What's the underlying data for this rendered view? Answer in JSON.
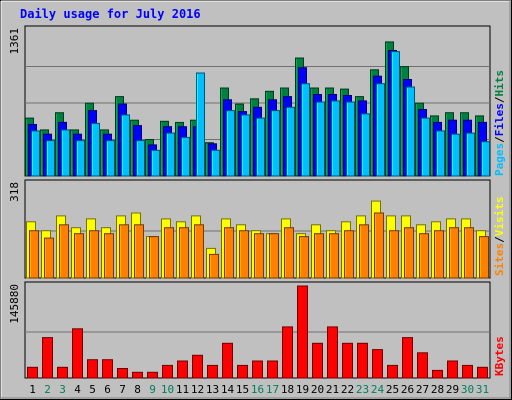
{
  "chart_data": {
    "type": "bar",
    "title": "Daily usage for July 2016",
    "categories": [
      "1",
      "2",
      "3",
      "4",
      "5",
      "6",
      "7",
      "8",
      "9",
      "10",
      "11",
      "12",
      "13",
      "14",
      "15",
      "16",
      "17",
      "18",
      "19",
      "20",
      "21",
      "22",
      "23",
      "24",
      "25",
      "26",
      "27",
      "28",
      "29",
      "30",
      "31"
    ],
    "weekend_days": [
      "2",
      "3",
      "9",
      "10",
      "16",
      "17",
      "23",
      "24",
      "30",
      "31"
    ],
    "panels": [
      {
        "id": "hits-panel",
        "max_label": "1361",
        "ylim": [
          0,
          1361
        ],
        "series": [
          {
            "name": "Hits",
            "color": "#008040",
            "values": [
              540,
              430,
              590,
              430,
              680,
              430,
              740,
              520,
              340,
              510,
              500,
              520,
              310,
              820,
              670,
              720,
              790,
              820,
              1100,
              820,
              820,
              810,
              740,
              990,
              1250,
              1020,
              680,
              560,
              590,
              590,
              560
            ]
          },
          {
            "name": "Files",
            "color": "#0000ff",
            "values": [
              480,
              390,
              500,
              390,
              610,
              390,
              670,
              470,
              290,
              460,
              460,
              460,
              300,
              710,
              600,
              640,
              710,
              740,
              1010,
              760,
              760,
              750,
              700,
              930,
              1170,
              900,
              620,
              500,
              520,
              520,
              500
            ]
          },
          {
            "name": "Pages",
            "color": "#00bfff",
            "values": [
              420,
              330,
              430,
              330,
              490,
              330,
              570,
              330,
              240,
              400,
              360,
              960,
              240,
              610,
              570,
              540,
              610,
              640,
              860,
              690,
              700,
              690,
              580,
              860,
              1160,
              830,
              540,
              420,
              390,
              400,
              320
            ]
          }
        ]
      },
      {
        "id": "visits-panel",
        "max_label": "318",
        "ylim": [
          0,
          318
        ],
        "series": [
          {
            "name": "Visits",
            "color": "#ffff00",
            "values": [
              190,
              160,
              210,
              170,
              200,
              170,
              210,
              220,
              140,
              200,
              190,
              210,
              100,
              200,
              180,
              160,
              150,
              200,
              150,
              180,
              160,
              190,
              210,
              260,
              210,
              210,
              180,
              190,
              200,
              200,
              160
            ]
          },
          {
            "name": "Sites",
            "color": "#ff8000",
            "values": [
              160,
              135,
              180,
              150,
              160,
              150,
              180,
              180,
              140,
              170,
              170,
              180,
              80,
              170,
              160,
              150,
              150,
              170,
              140,
              150,
              150,
              160,
              180,
              220,
              160,
              170,
              150,
              160,
              170,
              170,
              140
            ]
          }
        ]
      },
      {
        "id": "kbytes-panel",
        "max_label": "145880",
        "ylim": [
          0,
          145880
        ],
        "series": [
          {
            "name": "KBytes",
            "color": "#ff0000",
            "values": [
              17000,
              64000,
              17000,
              78000,
              29000,
              29000,
              15000,
              9000,
              9000,
              20000,
              27000,
              36000,
              20000,
              55000,
              20000,
              27000,
              27000,
              81000,
              145880,
              55000,
              81000,
              55000,
              55000,
              45000,
              20000,
              64000,
              40000,
              12000,
              27000,
              20000,
              17000
            ]
          }
        ]
      }
    ],
    "right_labels": [
      "Pages",
      "Files",
      "Hits",
      "Sites",
      "Visits",
      "KBytes"
    ]
  },
  "colors": {
    "title": "#0000ff",
    "weekday_label": "#000000",
    "weekend_label": "#00805c",
    "plot_bg": "#c0c0c0",
    "grid": "#707070"
  }
}
